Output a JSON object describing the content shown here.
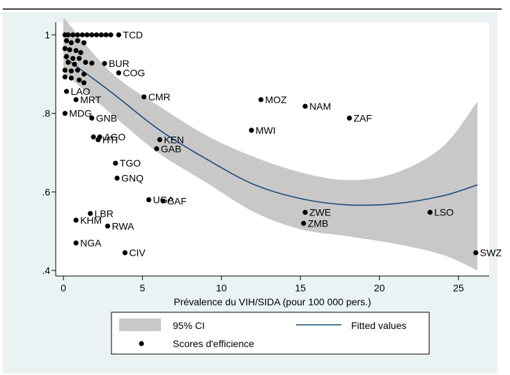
{
  "chart_data": {
    "type": "scatter",
    "title": "",
    "xlabel": "Prévalence du VIH/SIDA (pour 100 000 pers.)",
    "ylabel": "",
    "xlim": [
      0,
      26.5
    ],
    "ylim": [
      0.4,
      1.0
    ],
    "x_ticks": [
      0,
      5,
      10,
      15,
      20,
      25
    ],
    "y_ticks": [
      0.4,
      0.6,
      0.8,
      1.0
    ],
    "y_tick_labels": [
      ".4",
      ".6",
      ".8",
      "1"
    ],
    "grid": false,
    "legend_position": "bottom",
    "legend": {
      "ci_label": "95% CI",
      "fit_label": "Fitted values",
      "points_label": "Scores d'efficience"
    },
    "colors": {
      "ci_band": "#c8c8c8",
      "fitted_line": "#1a4a7a",
      "points": "#000000",
      "frame_background": "#eaf2f3"
    },
    "fitted_curve": [
      {
        "x": 0.0,
        "y": 0.944
      },
      {
        "x": 3.0,
        "y": 0.855
      },
      {
        "x": 6.0,
        "y": 0.76
      },
      {
        "x": 9.0,
        "y": 0.685
      },
      {
        "x": 12.0,
        "y": 0.62
      },
      {
        "x": 15.0,
        "y": 0.583
      },
      {
        "x": 18.0,
        "y": 0.567
      },
      {
        "x": 21.0,
        "y": 0.57
      },
      {
        "x": 24.0,
        "y": 0.59
      },
      {
        "x": 26.2,
        "y": 0.618
      }
    ],
    "ci_upper": [
      {
        "x": 0.0,
        "y": 1.045
      },
      {
        "x": 3.0,
        "y": 0.905
      },
      {
        "x": 6.0,
        "y": 0.82
      },
      {
        "x": 9.0,
        "y": 0.745
      },
      {
        "x": 12.0,
        "y": 0.69
      },
      {
        "x": 15.0,
        "y": 0.65
      },
      {
        "x": 18.0,
        "y": 0.63
      },
      {
        "x": 21.0,
        "y": 0.648
      },
      {
        "x": 24.0,
        "y": 0.715
      },
      {
        "x": 26.2,
        "y": 0.83
      }
    ],
    "ci_lower": [
      {
        "x": 0.0,
        "y": 0.905
      },
      {
        "x": 3.0,
        "y": 0.8
      },
      {
        "x": 6.0,
        "y": 0.7
      },
      {
        "x": 9.0,
        "y": 0.625
      },
      {
        "x": 12.0,
        "y": 0.55
      },
      {
        "x": 15.0,
        "y": 0.505
      },
      {
        "x": 18.0,
        "y": 0.487
      },
      {
        "x": 21.0,
        "y": 0.468
      },
      {
        "x": 24.0,
        "y": 0.44
      },
      {
        "x": 26.2,
        "y": 0.4
      }
    ],
    "points": [
      {
        "label": "TCD",
        "x": 3.5,
        "y": 1.0
      },
      {
        "label": "",
        "x": 0.1,
        "y": 1.0
      },
      {
        "label": "",
        "x": 0.3,
        "y": 1.0
      },
      {
        "label": "",
        "x": 0.6,
        "y": 1.0
      },
      {
        "label": "",
        "x": 0.9,
        "y": 1.0
      },
      {
        "label": "",
        "x": 1.2,
        "y": 1.0
      },
      {
        "label": "",
        "x": 1.5,
        "y": 1.0
      },
      {
        "label": "",
        "x": 1.8,
        "y": 1.0
      },
      {
        "label": "",
        "x": 2.1,
        "y": 1.0
      },
      {
        "label": "",
        "x": 2.4,
        "y": 1.0
      },
      {
        "label": "",
        "x": 2.7,
        "y": 1.0
      },
      {
        "label": "",
        "x": 3.0,
        "y": 1.0
      },
      {
        "label": "",
        "x": 0.2,
        "y": 0.985
      },
      {
        "label": "",
        "x": 0.5,
        "y": 0.98
      },
      {
        "label": "",
        "x": 0.9,
        "y": 0.985
      },
      {
        "label": "",
        "x": 1.3,
        "y": 0.98
      },
      {
        "label": "",
        "x": 0.1,
        "y": 0.965
      },
      {
        "label": "",
        "x": 0.4,
        "y": 0.962
      },
      {
        "label": "",
        "x": 0.8,
        "y": 0.96
      },
      {
        "label": "",
        "x": 1.1,
        "y": 0.955
      },
      {
        "label": "",
        "x": 0.2,
        "y": 0.945
      },
      {
        "label": "",
        "x": 0.6,
        "y": 0.94
      },
      {
        "label": "",
        "x": 1.0,
        "y": 0.94
      },
      {
        "label": "",
        "x": 0.3,
        "y": 0.93
      },
      {
        "label": "",
        "x": 0.7,
        "y": 0.925
      },
      {
        "label": "",
        "x": 1.4,
        "y": 0.93
      },
      {
        "label": "",
        "x": 1.8,
        "y": 0.928
      },
      {
        "label": "BUR",
        "x": 2.6,
        "y": 0.927
      },
      {
        "label": "",
        "x": 0.1,
        "y": 0.91
      },
      {
        "label": "",
        "x": 0.5,
        "y": 0.908
      },
      {
        "label": "",
        "x": 0.9,
        "y": 0.91
      },
      {
        "label": "",
        "x": 1.3,
        "y": 0.9
      },
      {
        "label": "COG",
        "x": 3.5,
        "y": 0.903
      },
      {
        "label": "",
        "x": 0.1,
        "y": 0.893
      },
      {
        "label": "",
        "x": 0.5,
        "y": 0.89
      },
      {
        "label": "",
        "x": 1.0,
        "y": 0.885
      },
      {
        "label": "",
        "x": 1.3,
        "y": 0.878
      },
      {
        "label": "LAO",
        "x": 0.2,
        "y": 0.856
      },
      {
        "label": "MRT",
        "x": 0.8,
        "y": 0.835
      },
      {
        "label": "CMR",
        "x": 5.1,
        "y": 0.842
      },
      {
        "label": "MDG",
        "x": 0.1,
        "y": 0.8
      },
      {
        "label": "GNB",
        "x": 1.8,
        "y": 0.788
      },
      {
        "label": "MOZ",
        "x": 12.5,
        "y": 0.835
      },
      {
        "label": "NAM",
        "x": 15.3,
        "y": 0.818
      },
      {
        "label": "ZAF",
        "x": 18.1,
        "y": 0.788
      },
      {
        "label": "MWI",
        "x": 11.9,
        "y": 0.757
      },
      {
        "label": "",
        "x": 1.9,
        "y": 0.74
      },
      {
        "label": "AGO",
        "x": 2.3,
        "y": 0.74
      },
      {
        "label": "HTI",
        "x": 2.2,
        "y": 0.733
      },
      {
        "label": "KEN",
        "x": 6.1,
        "y": 0.733
      },
      {
        "label": "GAB",
        "x": 5.9,
        "y": 0.71
      },
      {
        "label": "TGO",
        "x": 3.3,
        "y": 0.673
      },
      {
        "label": "GNQ",
        "x": 3.4,
        "y": 0.635
      },
      {
        "label": "UGA",
        "x": 5.4,
        "y": 0.58
      },
      {
        "label": "CAF",
        "x": 6.3,
        "y": 0.577
      },
      {
        "label": "ZWE",
        "x": 15.3,
        "y": 0.548
      },
      {
        "label": "LSO",
        "x": 23.2,
        "y": 0.548
      },
      {
        "label": "ZMB",
        "x": 15.2,
        "y": 0.52
      },
      {
        "label": "LBR",
        "x": 1.7,
        "y": 0.545
      },
      {
        "label": "KHM",
        "x": 0.8,
        "y": 0.528
      },
      {
        "label": "RWA",
        "x": 2.8,
        "y": 0.513
      },
      {
        "label": "NGA",
        "x": 0.8,
        "y": 0.47
      },
      {
        "label": "CIV",
        "x": 3.9,
        "y": 0.445
      },
      {
        "label": "SWZ",
        "x": 26.1,
        "y": 0.445
      }
    ]
  }
}
